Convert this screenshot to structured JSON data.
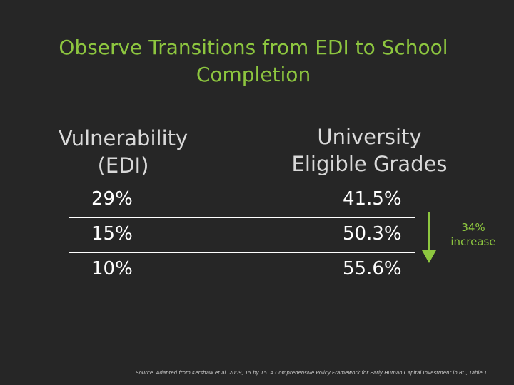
{
  "slide": {
    "title_line1": "Observe Transitions from EDI to School",
    "title_line2": "Completion",
    "left_header_line1": "Vulnerability",
    "left_header_line2": "(EDI)",
    "right_header_line1": "University",
    "right_header_line2": "Eligible Grades",
    "rows": [
      {
        "vulnerability": "29%",
        "grades": "41.5%"
      },
      {
        "vulnerability": "15%",
        "grades": "50.3%"
      },
      {
        "vulnerability": "10%",
        "grades": "55.6%"
      }
    ],
    "increase_value": "34%",
    "increase_label": "increase",
    "source": "Source. Adapted from Kershaw et al. 2009, 15 by 15. A Comprehensive Policy Framework for Early Human Capital Investment in BC, Table 1.."
  },
  "colors": {
    "background": "#262626",
    "title": "#8dc63f",
    "header": "#d9d9d9",
    "text": "#ffffff",
    "arrow": "#8dc63f"
  }
}
